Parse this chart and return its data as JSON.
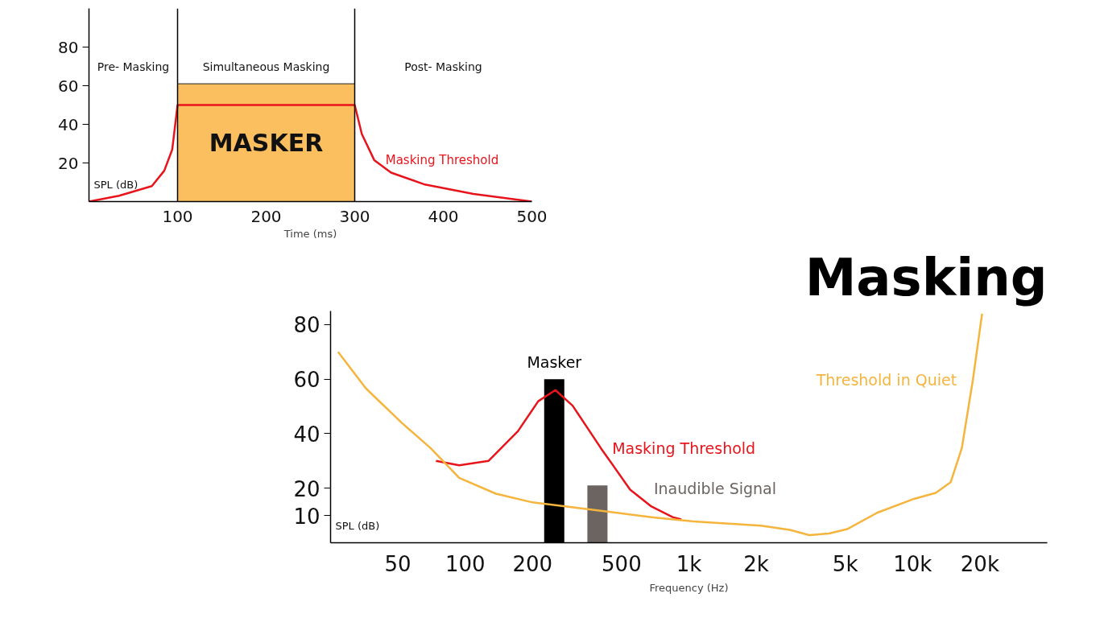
{
  "chart_data": [
    {
      "type": "line",
      "xlabel": "Time (ms)",
      "ylabel": "SPL (dB)",
      "xlim": [
        0,
        500
      ],
      "xticks": [
        100,
        200,
        300,
        400,
        500
      ],
      "ylim": [
        0,
        100
      ],
      "yticks": [
        20,
        40,
        60,
        80
      ],
      "grid": false,
      "series": [
        {
          "type": "area",
          "name": "MASKER",
          "color": "#fbbf5f",
          "x": [
            100,
            300
          ],
          "values": [
            61,
            61
          ]
        },
        {
          "name": "Masking Threshold",
          "color": "#e8141b",
          "x": [
            0,
            34,
            71,
            85,
            94,
            100,
            300,
            308,
            322,
            341,
            378,
            434,
            500
          ],
          "values": [
            0,
            3,
            8,
            16,
            27,
            50,
            50,
            35,
            21.5,
            15,
            9,
            4,
            0
          ]
        }
      ],
      "ref_lines": [
        {
          "axis": "x",
          "value": 100,
          "color": "#000000"
        },
        {
          "axis": "x",
          "value": 300,
          "color": "#000000"
        }
      ],
      "annotations": [
        "Pre- Masking",
        "Simultaneous Masking",
        "Post- Masking"
      ]
    },
    {
      "type": "line",
      "title": "Masking",
      "xlabel": "Frequency (Hz)",
      "ylabel": "SPL (dB)",
      "log": "x",
      "grid": false,
      "xlim": [
        25,
        40000
      ],
      "xticks": [
        50,
        100,
        200,
        500,
        {
          "value": 1000,
          "label": "1k"
        },
        {
          "value": 2000,
          "label": "2k"
        },
        {
          "value": 5000,
          "label": "5k"
        },
        {
          "value": 10000,
          "label": "10k"
        },
        {
          "value": 20000,
          "label": "20k"
        }
      ],
      "ylim": [
        0,
        85
      ],
      "yticks": [
        10,
        20,
        40,
        60,
        80
      ],
      "series": [
        {
          "type": "bar",
          "name": "Masker",
          "color": "#000000",
          "x": [
            250
          ],
          "values": [
            60
          ]
        },
        {
          "type": "bar",
          "name": "Inaudible Signal",
          "color": "#6b6460",
          "x": [
            390
          ],
          "values": [
            21
          ]
        },
        {
          "name": "Masking Threshold",
          "color": "#e8141b",
          "x": [
            74,
            94,
            127,
            172,
            212,
            253,
            302,
            404,
            546,
            680,
            846,
            924
          ],
          "values": [
            30,
            28.4,
            30,
            40.9,
            51.9,
            56,
            50.3,
            34.7,
            19.5,
            13.3,
            9.4,
            8.6
          ]
        },
        {
          "name": "Threshold in Quiet",
          "color": "#f5b43c",
          "x": [
            27,
            36,
            52,
            70,
            94,
            137,
            200,
            404,
            680,
            1050,
            2100,
            2830,
            3450,
            4230,
            5100,
            6940,
            10150,
            12700,
            14800,
            16600,
            18600,
            20450
          ],
          "values": [
            70,
            56.6,
            44,
            34.7,
            23.8,
            18,
            14.8,
            11.7,
            9.4,
            7.8,
            6.3,
            4.7,
            2.8,
            3.4,
            5,
            11,
            16.1,
            18.3,
            22.2,
            34.7,
            59.7,
            84
          ]
        }
      ]
    }
  ]
}
